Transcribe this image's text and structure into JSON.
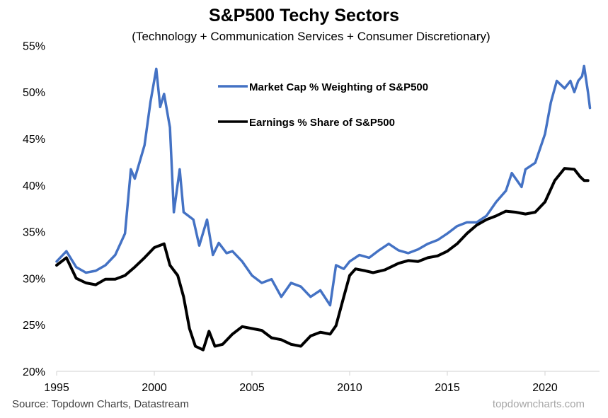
{
  "chart_data": {
    "type": "line",
    "title": "S&P500 Techy Sectors",
    "subtitle": "(Technology + Communication Services + Consumer Discretionary)",
    "xlabel": "",
    "ylabel": "",
    "xlim": [
      1995,
      2022.5
    ],
    "ylim": [
      20,
      55
    ],
    "x_ticks": [
      1995,
      2000,
      2005,
      2010,
      2015,
      2020
    ],
    "x_tick_labels": [
      "1995",
      "2000",
      "2005",
      "2010",
      "2015",
      "2020"
    ],
    "y_ticks": [
      20,
      25,
      30,
      35,
      40,
      45,
      50,
      55
    ],
    "y_tick_labels": [
      "20%",
      "25%",
      "30%",
      "35%",
      "40%",
      "45%",
      "50%",
      "55%"
    ],
    "grid": false,
    "legend_position": "top-center",
    "series": [
      {
        "name": "Market Cap % Weighting of S&P500",
        "color": "#4472c4",
        "x": [
          1995.0,
          1995.5,
          1996.0,
          1996.5,
          1997.0,
          1997.5,
          1998.0,
          1998.5,
          1998.8,
          1999.0,
          1999.5,
          1999.8,
          2000.1,
          2000.3,
          2000.5,
          2000.8,
          2001.0,
          2001.3,
          2001.5,
          2002.0,
          2002.3,
          2002.7,
          2003.0,
          2003.3,
          2003.7,
          2004.0,
          2004.5,
          2005.0,
          2005.5,
          2006.0,
          2006.5,
          2007.0,
          2007.5,
          2008.0,
          2008.5,
          2009.0,
          2009.3,
          2009.7,
          2010.0,
          2010.5,
          2011.0,
          2011.5,
          2012.0,
          2012.5,
          2013.0,
          2013.5,
          2014.0,
          2014.5,
          2015.0,
          2015.5,
          2016.0,
          2016.5,
          2017.0,
          2017.5,
          2018.0,
          2018.3,
          2018.8,
          2019.0,
          2019.5,
          2020.0,
          2020.3,
          2020.6,
          2021.0,
          2021.3,
          2021.5,
          2021.7,
          2021.9,
          2022.0,
          2022.2,
          2022.3
        ],
        "values": [
          31.8,
          32.9,
          31.2,
          30.6,
          30.8,
          31.4,
          32.5,
          34.8,
          41.7,
          40.7,
          44.3,
          48.9,
          52.5,
          48.4,
          49.8,
          46.2,
          37.1,
          41.7,
          37.1,
          36.3,
          33.5,
          36.3,
          32.5,
          33.8,
          32.7,
          32.9,
          31.8,
          30.3,
          29.5,
          29.9,
          28.0,
          29.5,
          29.1,
          28.0,
          28.7,
          27.1,
          31.4,
          31.0,
          31.8,
          32.5,
          32.2,
          33.0,
          33.7,
          33.0,
          32.7,
          33.1,
          33.7,
          34.1,
          34.8,
          35.6,
          36.0,
          36.0,
          36.7,
          38.2,
          39.4,
          41.3,
          39.8,
          41.7,
          42.4,
          45.5,
          48.9,
          51.2,
          50.4,
          51.2,
          50.0,
          51.2,
          51.7,
          52.8,
          50.0,
          48.3
        ]
      },
      {
        "name": "Earnings % Share of S&P500",
        "color": "#000000",
        "x": [
          1995.0,
          1995.5,
          1996.0,
          1996.5,
          1997.0,
          1997.5,
          1998.0,
          1998.5,
          1999.0,
          1999.5,
          2000.0,
          2000.5,
          2000.8,
          2001.2,
          2001.5,
          2001.8,
          2002.1,
          2002.5,
          2002.8,
          2003.1,
          2003.5,
          2004.0,
          2004.5,
          2005.0,
          2005.5,
          2006.0,
          2006.5,
          2007.0,
          2007.5,
          2008.0,
          2008.5,
          2009.0,
          2009.3,
          2009.7,
          2010.0,
          2010.3,
          2010.8,
          2011.2,
          2011.8,
          2012.5,
          2013.0,
          2013.5,
          2014.0,
          2014.5,
          2015.0,
          2015.5,
          2016.0,
          2016.5,
          2017.0,
          2017.5,
          2018.0,
          2018.5,
          2019.0,
          2019.5,
          2020.0,
          2020.5,
          2021.0,
          2021.5,
          2021.8,
          2022.0,
          2022.2
        ],
        "values": [
          31.4,
          32.2,
          30.0,
          29.5,
          29.3,
          29.9,
          29.9,
          30.3,
          31.2,
          32.2,
          33.3,
          33.7,
          31.4,
          30.3,
          28.0,
          24.6,
          22.7,
          22.3,
          24.3,
          22.7,
          22.9,
          24.0,
          24.8,
          24.6,
          24.4,
          23.6,
          23.4,
          22.9,
          22.7,
          23.8,
          24.2,
          24.0,
          24.9,
          28.0,
          30.3,
          31.0,
          30.8,
          30.6,
          30.9,
          31.6,
          31.9,
          31.8,
          32.2,
          32.4,
          32.9,
          33.7,
          34.8,
          35.7,
          36.3,
          36.7,
          37.2,
          37.1,
          36.9,
          37.1,
          38.2,
          40.5,
          41.8,
          41.7,
          40.9,
          40.5,
          40.5
        ]
      }
    ]
  },
  "footer": {
    "source": "Source: Topdown Charts, Datastream",
    "watermark": "topdowncharts.com"
  }
}
